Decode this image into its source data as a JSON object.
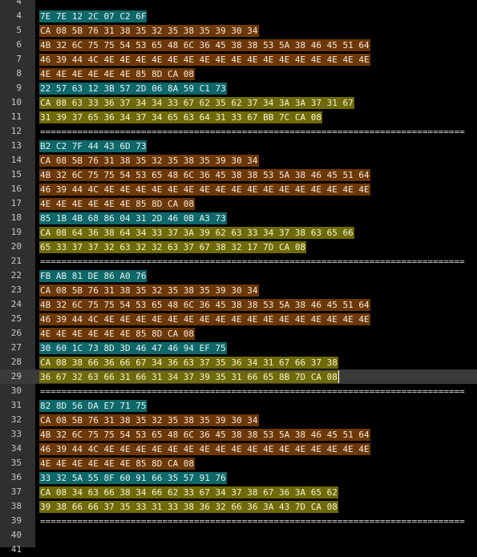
{
  "editor": {
    "lines": [
      {
        "n": "4",
        "text": "",
        "kind": "blank"
      },
      {
        "n": "4",
        "text": "7E 7E 12 2C 07 C2 6F",
        "kind": "teal"
      },
      {
        "n": "5",
        "text": "CA 08 5B 76 31 38 35 32 35 38 35 39 30 34",
        "kind": "brown"
      },
      {
        "n": "6",
        "text": "4B 32 6C 75 75 54 53 65 48 6C 36 45 38 38 53 5A 38 46 45 51 64",
        "kind": "brown"
      },
      {
        "n": "7",
        "text": "46 39 44 4C 4E 4E 4E 4E 4E 4E 4E 4E 4E 4E 4E 4E 4E 4E 4E 4E 4E",
        "kind": "brown"
      },
      {
        "n": "8",
        "text": "4E 4E 4E 4E 4E 4E 85 8D CA 08",
        "kind": "brown"
      },
      {
        "n": "9",
        "text": "22 57 63 12 3B 57 2D 06 8A 59 C1 73",
        "kind": "teal"
      },
      {
        "n": "10",
        "text": "CA 08 63 33 36 37 34 34 33 67 62 35 62 37 34 3A 3A 37 31 67",
        "kind": "olive"
      },
      {
        "n": "11",
        "text": "31 39 37 65 36 34 37 34 65 63 64 31 33 67 BB 7C CA 08",
        "kind": "olive"
      },
      {
        "n": "12",
        "text": "================================================================================",
        "kind": "sep"
      },
      {
        "n": "13",
        "text": "B2 C2 7F 44 43 6D 73",
        "kind": "teal"
      },
      {
        "n": "14",
        "text": "CA 08 5B 76 31 38 35 32 35 38 35 39 30 34",
        "kind": "brown"
      },
      {
        "n": "15",
        "text": "4B 32 6C 75 75 54 53 65 48 6C 36 45 38 38 53 5A 38 46 45 51 64",
        "kind": "brown"
      },
      {
        "n": "16",
        "text": "46 39 44 4C 4E 4E 4E 4E 4E 4E 4E 4E 4E 4E 4E 4E 4E 4E 4E 4E 4E",
        "kind": "brown"
      },
      {
        "n": "17",
        "text": "4E 4E 4E 4E 4E 4E 85 8D CA 08",
        "kind": "brown"
      },
      {
        "n": "18",
        "text": "85 1B 4B 68 86 04 31 2D 46 0B A3 73",
        "kind": "teal"
      },
      {
        "n": "19",
        "text": "CA 08 64 36 38 64 34 33 37 3A 39 62 63 33 34 37 38 63 65 66",
        "kind": "olive"
      },
      {
        "n": "20",
        "text": "65 33 37 37 32 63 32 32 63 37 67 38 32 17 7D CA 08",
        "kind": "olive"
      },
      {
        "n": "21",
        "text": "================================================================================",
        "kind": "sep"
      },
      {
        "n": "22",
        "text": "FB AB 81 DE 86 A0 76",
        "kind": "teal"
      },
      {
        "n": "23",
        "text": "CA 08 5B 76 31 38 35 32 35 38 35 39 30 34",
        "kind": "brown"
      },
      {
        "n": "24",
        "text": "4B 32 6C 75 75 54 53 65 48 6C 36 45 38 38 53 5A 38 46 45 51 64",
        "kind": "brown"
      },
      {
        "n": "25",
        "text": "46 39 44 4C 4E 4E 4E 4E 4E 4E 4E 4E 4E 4E 4E 4E 4E 4E 4E 4E 4E",
        "kind": "brown"
      },
      {
        "n": "26",
        "text": "4E 4E 4E 4E 4E 4E 85 8D CA 08",
        "kind": "brown"
      },
      {
        "n": "27",
        "text": "30 60 1C 73 8D 3D 46 47 46 94 EF 75",
        "kind": "teal"
      },
      {
        "n": "28",
        "text": "CA 08 38 66 36 66 67 34 36 63 37 35 36 34 31 67 66 37 38",
        "kind": "olive"
      },
      {
        "n": "29",
        "text": "36 67 32 63 66 31 66 31 34 37 39 35 31 66 65 8B 7D CA 08",
        "kind": "olive",
        "current": true
      },
      {
        "n": "30",
        "text": "================================================================================",
        "kind": "sep"
      },
      {
        "n": "31",
        "text": "82 8D 56 DA E7 71 75",
        "kind": "teal"
      },
      {
        "n": "32",
        "text": "CA 08 5B 76 31 38 35 32 35 38 35 39 30 34",
        "kind": "brown"
      },
      {
        "n": "33",
        "text": "4B 32 6C 75 75 54 53 65 48 6C 36 45 38 38 53 5A 38 46 45 51 64",
        "kind": "brown"
      },
      {
        "n": "34",
        "text": "46 39 44 4C 4E 4E 4E 4E 4E 4E 4E 4E 4E 4E 4E 4E 4E 4E 4E 4E 4E",
        "kind": "brown"
      },
      {
        "n": "35",
        "text": "4E 4E 4E 4E 4E 4E 85 8D CA 08",
        "kind": "brown"
      },
      {
        "n": "36",
        "text": "33 32 5A 55 8F 60 91 66 35 57 91 76",
        "kind": "teal"
      },
      {
        "n": "37",
        "text": "CA 08 34 63 66 38 34 66 62 33 67 34 37 38 67 36 3A 65 62",
        "kind": "olive"
      },
      {
        "n": "38",
        "text": "39 38 66 66 37 35 33 31 33 38 36 32 66 36 3A 43 7D CA 08",
        "kind": "olive"
      },
      {
        "n": "39",
        "text": "================================================================================",
        "kind": "sep"
      },
      {
        "n": "40",
        "text": "",
        "kind": "blank"
      },
      {
        "n": "41",
        "text": "",
        "kind": "blank"
      }
    ],
    "colors": {
      "teal": "#0e6768",
      "brown": "#6d3807",
      "olive": "#6f6a08",
      "gutter": "#2f2f2f",
      "background": "#000000"
    }
  }
}
